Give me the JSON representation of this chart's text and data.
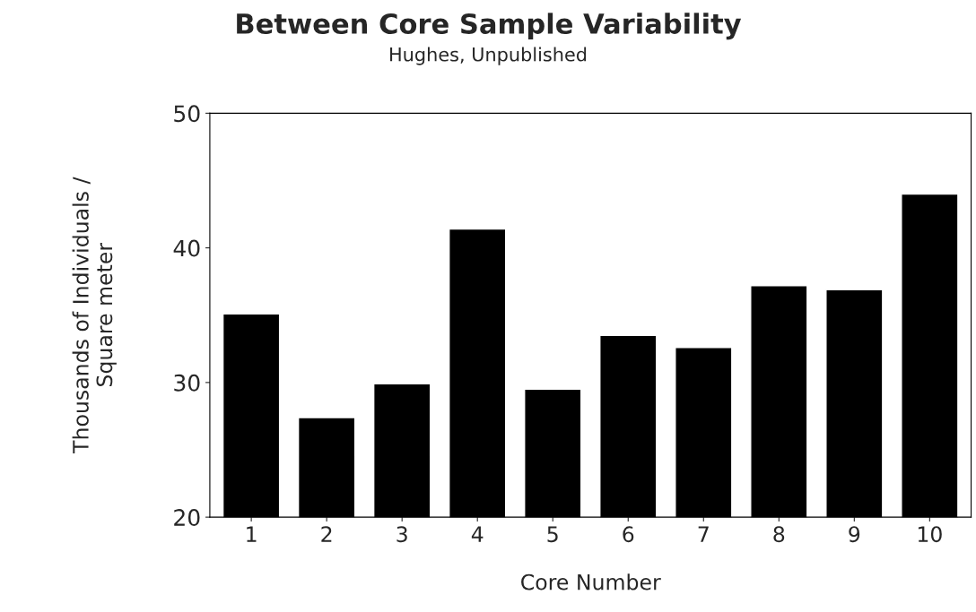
{
  "chart_data": {
    "type": "bar",
    "title": "Between Core Sample Variability",
    "subtitle": "Hughes, Unpublished",
    "xlabel": "Core Number",
    "ylabel": "Thousands of Individuals /\nSquare meter",
    "categories": [
      "1",
      "2",
      "3",
      "4",
      "5",
      "6",
      "7",
      "8",
      "9",
      "10"
    ],
    "values": [
      35.1,
      27.4,
      29.9,
      41.4,
      29.5,
      33.5,
      32.6,
      37.2,
      36.9,
      44.0
    ],
    "color": "#000000",
    "ylim": [
      20,
      50
    ],
    "yticks": [
      20,
      30,
      40,
      50
    ],
    "grid": false,
    "legend": false
  }
}
